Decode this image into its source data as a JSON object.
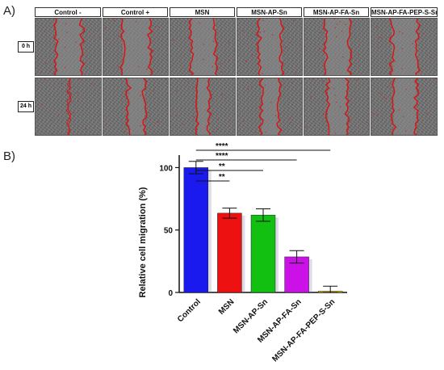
{
  "panel_a": {
    "label": "A)",
    "columns": [
      "Control -",
      "Control +",
      "MSN",
      "MSN-AP-Sn",
      "MSN-AP-FA-Sn",
      "MSN-AP-FA-PEP-S-Sn"
    ],
    "rows": [
      "0 h",
      "24 h"
    ]
  },
  "panel_b": {
    "label": "B)"
  },
  "chart_data": {
    "type": "bar",
    "title": "",
    "xlabel": "",
    "ylabel": "Relative cell migration (%)",
    "ylim": [
      0,
      110
    ],
    "yticks": [
      "0",
      "50",
      "100"
    ],
    "categories": [
      "Control",
      "MSN",
      "MSN-AP-Sn",
      "MSN-AP-FA-Sn",
      "MSN-AP-FA-PEP-S-Sn"
    ],
    "values": [
      100,
      63.5,
      62,
      28.5,
      1
    ],
    "errors": [
      5,
      4,
      5,
      5,
      4
    ],
    "colors": [
      "#1a1aee",
      "#ee1111",
      "#12c012",
      "#cc11e8",
      "#e8b400"
    ],
    "significance": [
      {
        "from": 0,
        "to": 1,
        "label": "**"
      },
      {
        "from": 0,
        "to": 2,
        "label": "**"
      },
      {
        "from": 0,
        "to": 3,
        "label": "****"
      },
      {
        "from": 0,
        "to": 4,
        "label": "****"
      }
    ]
  }
}
